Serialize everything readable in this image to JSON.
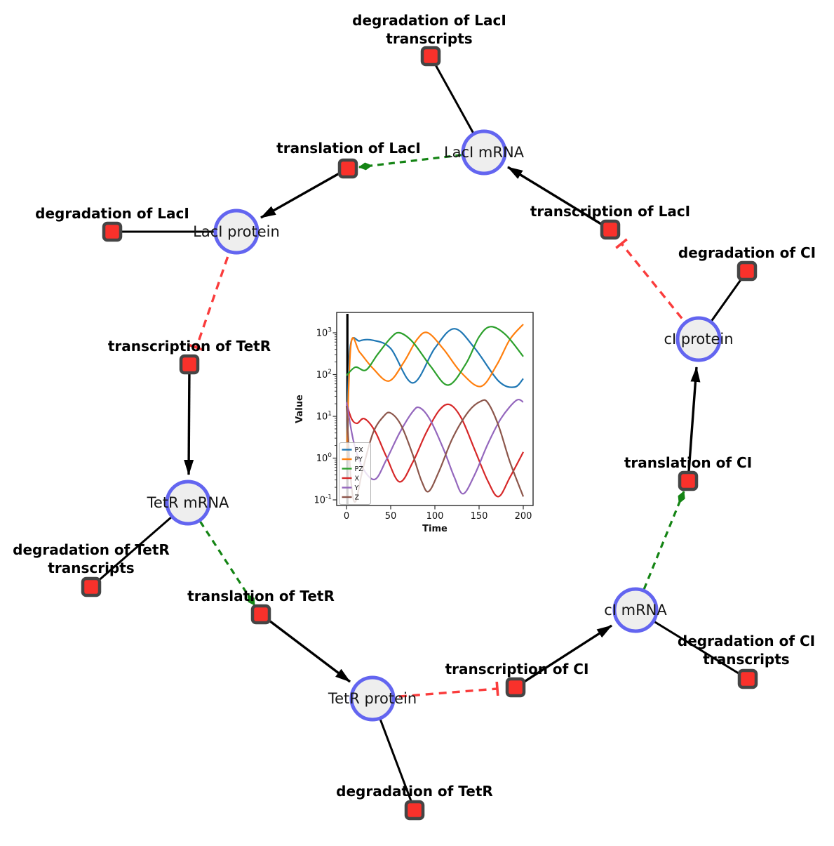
{
  "diagram": {
    "colors": {
      "species_fill": "#eeeeee",
      "species_stroke": "#6365f0",
      "reaction_fill": "#f9312b",
      "reaction_stroke": "#454545",
      "activation_edge": "#148414",
      "inhibition_edge": "#fa3c3c",
      "plain_edge": "#000000"
    },
    "species": [
      {
        "id": "laci-mrna",
        "label": "LacI mRNA"
      },
      {
        "id": "laci-protein",
        "label": "LacI protein"
      },
      {
        "id": "ci-protein",
        "label": "cI protein"
      },
      {
        "id": "tetr-mrna",
        "label": "TetR mRNA"
      },
      {
        "id": "ci-mrna",
        "label": "cI mRNA"
      },
      {
        "id": "tetr-protein",
        "label": "TetR protein"
      }
    ],
    "reactions": [
      {
        "id": "degradation-of-laci-transcripts",
        "lines": [
          "degradation of LacI",
          "transcripts"
        ]
      },
      {
        "id": "translation-of-laci",
        "lines": [
          "translation of LacI"
        ]
      },
      {
        "id": "transcription-of-laci",
        "lines": [
          "transcription of LacI"
        ]
      },
      {
        "id": "degradation-of-laci",
        "lines": [
          "degradation of LacI"
        ]
      },
      {
        "id": "transcription-of-tetr",
        "lines": [
          "transcription of TetR"
        ]
      },
      {
        "id": "degradation-of-ci",
        "lines": [
          "degradation of CI"
        ]
      },
      {
        "id": "translation-of-ci",
        "lines": [
          "translation of CI"
        ]
      },
      {
        "id": "degradation-of-tetr-transcripts",
        "lines": [
          "degradation of TetR",
          "transcripts"
        ]
      },
      {
        "id": "translation-of-tetr",
        "lines": [
          "translation of TetR"
        ]
      },
      {
        "id": "transcription-of-ci",
        "lines": [
          "transcription of CI"
        ]
      },
      {
        "id": "degradation-of-ci-transcripts",
        "lines": [
          "degradation of CI",
          "transcripts"
        ]
      },
      {
        "id": "degradation-of-tetr",
        "lines": [
          "degradation of TetR"
        ]
      }
    ],
    "edges": [
      {
        "from": "laci-mrna",
        "to": "degradation-of-laci-transcripts",
        "type": "consumption"
      },
      {
        "from": "laci-protein",
        "to": "degradation-of-laci",
        "type": "consumption"
      },
      {
        "from": "ci-protein",
        "to": "degradation-of-ci",
        "type": "consumption"
      },
      {
        "from": "tetr-mrna",
        "to": "degradation-of-tetr-transcripts",
        "type": "consumption"
      },
      {
        "from": "ci-mrna",
        "to": "degradation-of-ci-transcripts",
        "type": "consumption"
      },
      {
        "from": "tetr-protein",
        "to": "degradation-of-tetr",
        "type": "consumption"
      },
      {
        "from": "transcription-of-laci",
        "to": "laci-mrna",
        "type": "production"
      },
      {
        "from": "translation-of-laci",
        "to": "laci-protein",
        "type": "production"
      },
      {
        "from": "transcription-of-tetr",
        "to": "tetr-mrna",
        "type": "production"
      },
      {
        "from": "translation-of-tetr",
        "to": "tetr-protein",
        "type": "production"
      },
      {
        "from": "transcription-of-ci",
        "to": "ci-mrna",
        "type": "production"
      },
      {
        "from": "translation-of-ci",
        "to": "ci-protein",
        "type": "production"
      },
      {
        "from": "laci-mrna",
        "to": "translation-of-laci",
        "type": "modifier"
      },
      {
        "from": "tetr-mrna",
        "to": "translation-of-tetr",
        "type": "modifier"
      },
      {
        "from": "ci-mrna",
        "to": "translation-of-ci",
        "type": "modifier"
      },
      {
        "from": "laci-protein",
        "to": "transcription-of-tetr",
        "type": "inhibition"
      },
      {
        "from": "tetr-protein",
        "to": "transcription-of-ci",
        "type": "inhibition"
      },
      {
        "from": "ci-protein",
        "to": "transcription-of-laci",
        "type": "inhibition"
      }
    ]
  },
  "chart_data": {
    "type": "line",
    "title": "",
    "xlabel": "Time",
    "ylabel": "Value",
    "xscale": "linear",
    "yscale": "log",
    "xlim": [
      0,
      200
    ],
    "ylim": [
      0.07,
      3000
    ],
    "xticks": [
      0,
      50,
      100,
      150,
      200
    ],
    "ytick_exponents": [
      -1,
      0,
      1,
      2,
      3
    ],
    "grid": false,
    "legend_position": "lower left",
    "vline": {
      "x": 1,
      "color": "#000000"
    },
    "series": [
      {
        "name": "PX",
        "color": "#1f77b4",
        "points": [
          [
            0,
            1
          ],
          [
            4,
            420
          ],
          [
            15,
            640
          ],
          [
            30,
            660
          ],
          [
            50,
            420
          ],
          [
            75,
            63
          ],
          [
            100,
            430
          ],
          [
            122,
            1250
          ],
          [
            145,
            430
          ],
          [
            172,
            70
          ],
          [
            190,
            50
          ],
          [
            200,
            80
          ]
        ]
      },
      {
        "name": "PY",
        "color": "#ff7f0e",
        "points": [
          [
            0,
            1
          ],
          [
            5,
            520
          ],
          [
            15,
            340
          ],
          [
            30,
            140
          ],
          [
            48,
            70
          ],
          [
            65,
            200
          ],
          [
            80,
            700
          ],
          [
            92,
            1000
          ],
          [
            110,
            400
          ],
          [
            130,
            110
          ],
          [
            152,
            52
          ],
          [
            170,
            170
          ],
          [
            185,
            700
          ],
          [
            200,
            1600
          ]
        ]
      },
      {
        "name": "PZ",
        "color": "#2ca02c",
        "points": [
          [
            0,
            95
          ],
          [
            10,
            150
          ],
          [
            22,
            128
          ],
          [
            35,
            300
          ],
          [
            50,
            750
          ],
          [
            60,
            1000
          ],
          [
            75,
            600
          ],
          [
            95,
            160
          ],
          [
            115,
            56
          ],
          [
            135,
            180
          ],
          [
            150,
            800
          ],
          [
            163,
            1400
          ],
          [
            180,
            900
          ],
          [
            200,
            270
          ]
        ]
      },
      {
        "name": "X",
        "color": "#d62728",
        "points": [
          [
            0,
            20
          ],
          [
            6,
            8.5
          ],
          [
            12,
            6.8
          ],
          [
            20,
            8.8
          ],
          [
            32,
            4.5
          ],
          [
            45,
            1.1
          ],
          [
            60,
            0.27
          ],
          [
            75,
            0.8
          ],
          [
            90,
            4
          ],
          [
            105,
            14
          ],
          [
            117,
            19
          ],
          [
            130,
            9
          ],
          [
            145,
            1.6
          ],
          [
            160,
            0.28
          ],
          [
            172,
            0.12
          ],
          [
            185,
            0.35
          ],
          [
            200,
            1.4
          ]
        ]
      },
      {
        "name": "Y",
        "color": "#9467bd",
        "points": [
          [
            0,
            22
          ],
          [
            8,
            2.5
          ],
          [
            18,
            0.6
          ],
          [
            32,
            0.31
          ],
          [
            45,
            0.9
          ],
          [
            60,
            4
          ],
          [
            75,
            13
          ],
          [
            83,
            16
          ],
          [
            95,
            8
          ],
          [
            110,
            1.6
          ],
          [
            122,
            0.35
          ],
          [
            132,
            0.14
          ],
          [
            145,
            0.4
          ],
          [
            160,
            2.2
          ],
          [
            175,
            9
          ],
          [
            192,
            24
          ],
          [
            200,
            22
          ]
        ]
      },
      {
        "name": "Z",
        "color": "#8c564b",
        "points": [
          [
            0,
            18
          ],
          [
            5,
            0.3
          ],
          [
            10,
            0.09
          ],
          [
            18,
            0.5
          ],
          [
            30,
            4
          ],
          [
            42,
            10
          ],
          [
            50,
            12
          ],
          [
            62,
            6
          ],
          [
            75,
            1.2
          ],
          [
            85,
            0.28
          ],
          [
            93,
            0.16
          ],
          [
            105,
            0.5
          ],
          [
            120,
            3
          ],
          [
            138,
            13
          ],
          [
            152,
            23
          ],
          [
            160,
            21
          ],
          [
            172,
            6
          ],
          [
            185,
            0.8
          ],
          [
            200,
            0.12
          ]
        ]
      }
    ]
  }
}
